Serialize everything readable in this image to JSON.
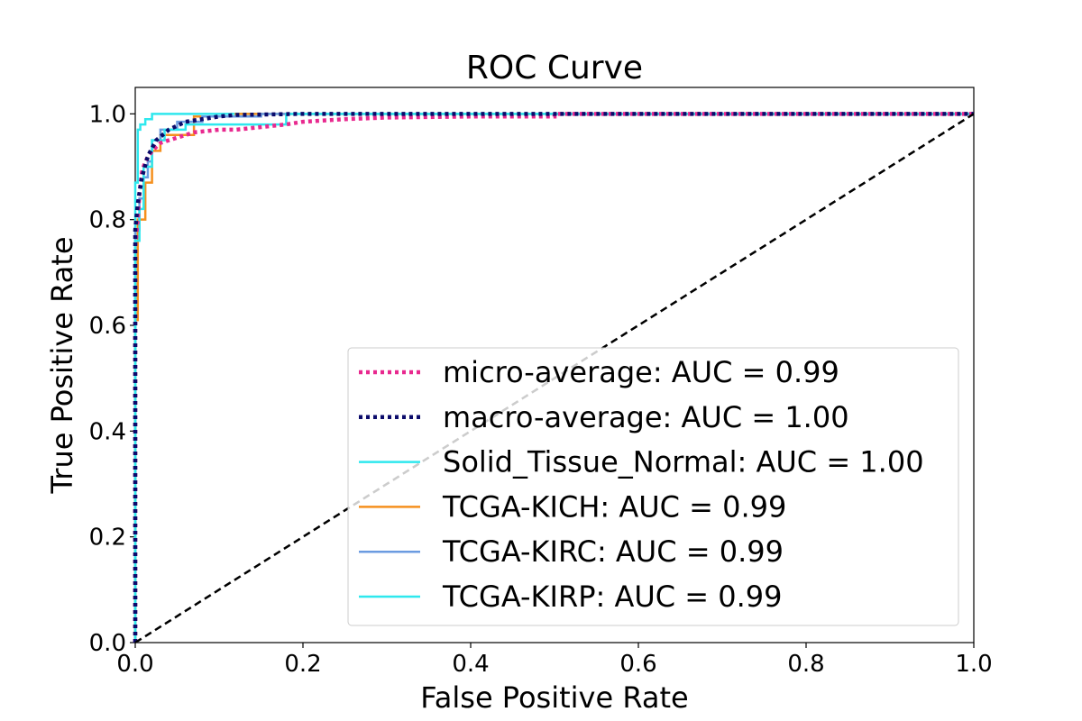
{
  "chart_data": {
    "type": "line",
    "title": "ROC Curve",
    "xlabel": "False Positive Rate",
    "ylabel": "True Positive Rate",
    "xlim": [
      0.0,
      1.0
    ],
    "ylim": [
      0.0,
      1.05
    ],
    "x_ticks": [
      "0.0",
      "0.2",
      "0.4",
      "0.6",
      "0.8",
      "1.0"
    ],
    "y_ticks": [
      "0.0",
      "0.2",
      "0.4",
      "0.6",
      "0.8",
      "1.0"
    ],
    "grid": false,
    "legend_position": "lower-right",
    "series": [
      {
        "name": "micro-average: AUC = 0.99",
        "color": "#e8298f",
        "style": "dotted",
        "x": [
          0.0,
          0.0,
          0.003,
          0.005,
          0.008,
          0.012,
          0.02,
          0.03,
          0.05,
          0.07,
          0.1,
          0.12,
          0.15,
          0.18,
          0.2,
          0.25,
          0.3,
          0.4,
          0.5,
          0.5,
          1.0
        ],
        "y": [
          0.0,
          0.75,
          0.8,
          0.85,
          0.89,
          0.91,
          0.93,
          0.945,
          0.955,
          0.965,
          0.97,
          0.97,
          0.975,
          0.98,
          0.985,
          0.99,
          0.993,
          0.995,
          0.995,
          1.0,
          1.0
        ]
      },
      {
        "name": "macro-average: AUC = 1.00",
        "color": "#0b0b6b",
        "style": "dotted",
        "x": [
          0.0,
          0.0,
          0.003,
          0.008,
          0.015,
          0.025,
          0.04,
          0.06,
          0.08,
          0.1,
          0.12,
          0.2,
          1.0
        ],
        "y": [
          0.0,
          0.78,
          0.83,
          0.88,
          0.92,
          0.95,
          0.97,
          0.985,
          0.99,
          0.995,
          0.998,
          1.0,
          1.0
        ]
      },
      {
        "name": "Solid_Tissue_Normal: AUC = 1.00",
        "color": "#2ee8ee",
        "style": "solid",
        "x": [
          0.0,
          0.0,
          0.003,
          0.003,
          0.006,
          0.006,
          0.012,
          0.012,
          0.02,
          0.02,
          1.0
        ],
        "y": [
          0.0,
          0.87,
          0.87,
          0.97,
          0.97,
          0.98,
          0.98,
          0.99,
          0.99,
          1.0,
          1.0
        ]
      },
      {
        "name": "TCGA-KICH: AUC = 0.99",
        "color": "#f5901e",
        "style": "solid",
        "x": [
          0.0,
          0.0,
          0.003,
          0.003,
          0.012,
          0.012,
          0.02,
          0.02,
          0.03,
          0.03,
          0.07,
          0.07,
          0.12,
          0.12,
          1.0
        ],
        "y": [
          0.0,
          0.61,
          0.61,
          0.8,
          0.8,
          0.87,
          0.87,
          0.93,
          0.93,
          0.96,
          0.96,
          0.995,
          0.995,
          1.0,
          1.0
        ]
      },
      {
        "name": "TCGA-KIRC: AUC = 0.99",
        "color": "#6b9be0",
        "style": "solid",
        "x": [
          0.0,
          0.0,
          0.005,
          0.005,
          0.01,
          0.01,
          0.015,
          0.015,
          0.02,
          0.02,
          0.03,
          0.03,
          0.05,
          0.05,
          0.08,
          0.08,
          0.15,
          0.15,
          1.0
        ],
        "y": [
          0.0,
          0.78,
          0.78,
          0.84,
          0.84,
          0.88,
          0.88,
          0.91,
          0.91,
          0.95,
          0.95,
          0.97,
          0.97,
          0.985,
          0.985,
          0.995,
          0.995,
          1.0,
          1.0
        ]
      },
      {
        "name": "TCGA-KIRP: AUC = 0.99",
        "color": "#2ee8ee",
        "style": "solid",
        "x": [
          0.0,
          0.0,
          0.005,
          0.005,
          0.01,
          0.01,
          0.02,
          0.02,
          0.035,
          0.035,
          0.06,
          0.06,
          0.18,
          0.18,
          1.0
        ],
        "y": [
          0.0,
          0.76,
          0.76,
          0.82,
          0.82,
          0.9,
          0.9,
          0.95,
          0.95,
          0.97,
          0.97,
          0.98,
          0.98,
          1.0,
          1.0
        ]
      }
    ],
    "reference_lines": [
      {
        "color": "#000000",
        "style": "dashed",
        "x": [
          0.0,
          1.0
        ],
        "y": [
          0.0,
          1.0
        ]
      },
      {
        "color": "#c8c8c8",
        "style": "dashed",
        "x": [
          0.0,
          1.0
        ],
        "y": [
          0.0,
          1.0
        ]
      }
    ]
  }
}
